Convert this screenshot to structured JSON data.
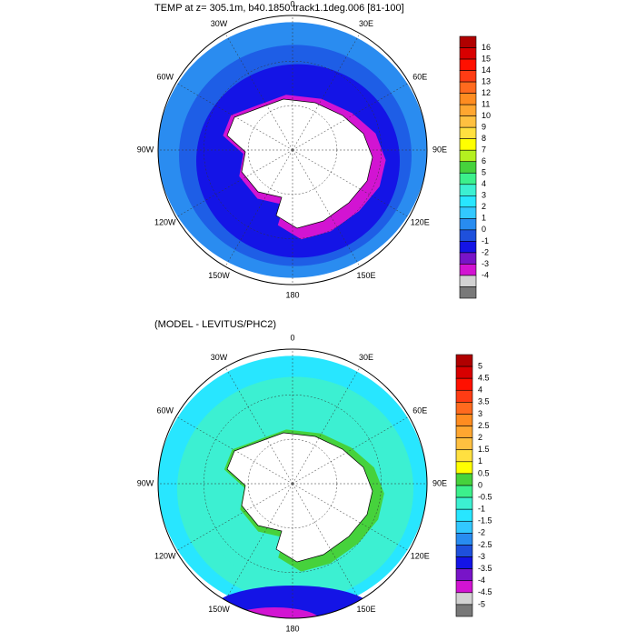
{
  "panels": [
    {
      "title": "TEMP at z= 305.1m, b40.1850.track1.1deg.006 [81-100]",
      "lon_labels": [
        "0",
        "30E",
        "60E",
        "90E",
        "120E",
        "150E",
        "180",
        "150W",
        "120W",
        "90W",
        "60W",
        "30W"
      ],
      "colorbar": {
        "labels": [
          16,
          15,
          14,
          13,
          12,
          11,
          10,
          9,
          8,
          7,
          6,
          5,
          4,
          3,
          2,
          1,
          0,
          -1,
          -2,
          -3,
          -4
        ],
        "colors": [
          "#b00000",
          "#d80000",
          "#ff1000",
          "#ff3c14",
          "#ff6a1e",
          "#ff8c20",
          "#ffa630",
          "#ffc040",
          "#ffe040",
          "#ffff00",
          "#b4f020",
          "#46d23c",
          "#3cf08c",
          "#3cf0d2",
          "#28e6ff",
          "#32c8ff",
          "#288cf0",
          "#1e50dc",
          "#1414e6",
          "#7814c8",
          "#d214d2",
          "#d2d2d2",
          "#787878"
        ]
      }
    },
    {
      "title": "(MODEL - LEVITUS/PHC2)",
      "lon_labels": [
        "0",
        "30E",
        "60E",
        "90E",
        "120E",
        "150E",
        "180",
        "150W",
        "120W",
        "90W",
        "60W",
        "30W"
      ],
      "colorbar": {
        "labels": [
          5,
          4.5,
          4,
          3.5,
          3,
          2.5,
          2,
          1.5,
          1,
          0.5,
          0,
          -0.5,
          -1,
          -1.5,
          -2,
          -2.5,
          -3,
          -3.5,
          -4,
          -4.5,
          -5
        ],
        "colors": [
          "#b00000",
          "#d80000",
          "#ff1000",
          "#ff3c14",
          "#ff6a1e",
          "#ff8c20",
          "#ffa630",
          "#ffc040",
          "#ffe040",
          "#ffff00",
          "#46d23c",
          "#3cf08c",
          "#3cf0d2",
          "#28e6ff",
          "#32c8ff",
          "#288cf0",
          "#1e50dc",
          "#1414e6",
          "#7814c8",
          "#d214d2",
          "#d2d2d2",
          "#787878"
        ]
      }
    }
  ]
}
